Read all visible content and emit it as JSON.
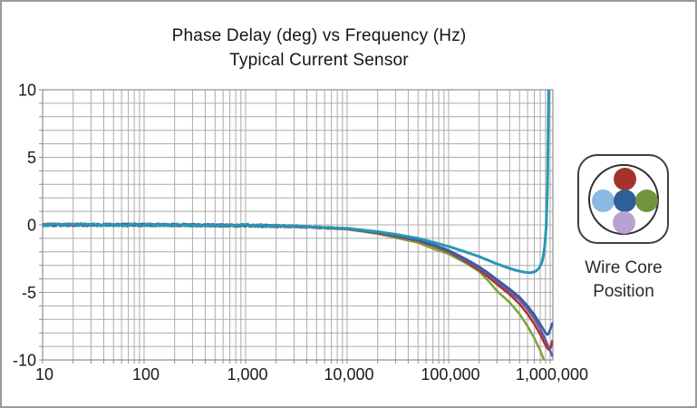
{
  "chart_data": {
    "type": "line",
    "title": "Phase Delay (deg) vs Frequency (Hz)",
    "subtitle": "Typical Current Sensor",
    "xlabel": "Frequency (Hz)",
    "ylabel": "Phase Delay (deg)",
    "x_scale": "log",
    "xlim": [
      10,
      1065000
    ],
    "ylim": [
      -10,
      10
    ],
    "x_ticks": [
      10,
      100,
      1000,
      10000,
      100000,
      1000000
    ],
    "x_tick_labels": [
      "10",
      "100",
      "1,000",
      "10,000",
      "100,000",
      "1,000,000"
    ],
    "y_ticks": [
      10,
      5,
      0,
      -5,
      -10
    ],
    "y_tick_labels": [
      "10",
      "5",
      "0",
      "-5",
      "-10"
    ],
    "y_minor_step": 1,
    "grid": true,
    "grid_color": "#ababab",
    "axis_color": "#8f8f8f",
    "legend": {
      "line1": "Wire Core",
      "line2": "Position",
      "dots": [
        {
          "position": "top",
          "color": "#a5322b"
        },
        {
          "position": "left",
          "color": "#8cb9e2"
        },
        {
          "position": "center",
          "color": "#2e5f9b"
        },
        {
          "position": "right",
          "color": "#71943e"
        },
        {
          "position": "bottom",
          "color": "#b6a3d4"
        }
      ]
    },
    "series": [
      {
        "name": "green",
        "color": "#7da73c",
        "width": 2.6,
        "points": [
          [
            10,
            0
          ],
          [
            50,
            0
          ],
          [
            200,
            -0.02
          ],
          [
            1000,
            -0.06
          ],
          [
            3000,
            -0.13
          ],
          [
            10000,
            -0.33
          ],
          [
            20000,
            -0.66
          ],
          [
            30000,
            -0.95
          ],
          [
            50000,
            -1.32
          ],
          [
            70000,
            -1.75
          ],
          [
            100000,
            -2.15
          ],
          [
            150000,
            -2.85
          ],
          [
            200000,
            -3.45
          ],
          [
            250000,
            -4.2
          ],
          [
            300000,
            -4.9
          ],
          [
            400000,
            -5.75
          ],
          [
            500000,
            -6.6
          ],
          [
            600000,
            -7.5
          ],
          [
            700000,
            -8.4
          ],
          [
            800000,
            -9.3
          ],
          [
            860000,
            -9.9
          ],
          [
            900000,
            -10.4
          ],
          [
            930000,
            -10.9
          ]
        ]
      },
      {
        "name": "red",
        "color": "#a8352f",
        "width": 2.6,
        "points": [
          [
            10,
            0
          ],
          [
            50,
            0
          ],
          [
            200,
            -0.01
          ],
          [
            1000,
            -0.05
          ],
          [
            3000,
            -0.12
          ],
          [
            10000,
            -0.3
          ],
          [
            20000,
            -0.6
          ],
          [
            30000,
            -0.85
          ],
          [
            50000,
            -1.18
          ],
          [
            70000,
            -1.55
          ],
          [
            100000,
            -2.0
          ],
          [
            150000,
            -2.75
          ],
          [
            200000,
            -3.35
          ],
          [
            250000,
            -3.9
          ],
          [
            300000,
            -4.4
          ],
          [
            400000,
            -5.15
          ],
          [
            500000,
            -5.85
          ],
          [
            600000,
            -6.6
          ],
          [
            700000,
            -7.35
          ],
          [
            800000,
            -8.1
          ],
          [
            880000,
            -8.75
          ],
          [
            940000,
            -9.15
          ],
          [
            980000,
            -9.3
          ],
          [
            1015000,
            -9.1
          ],
          [
            1050000,
            -8.6
          ]
        ]
      },
      {
        "name": "purple",
        "color": "#6f58a0",
        "width": 2.6,
        "points": [
          [
            10,
            0
          ],
          [
            50,
            0
          ],
          [
            200,
            -0.01
          ],
          [
            1000,
            -0.05
          ],
          [
            3000,
            -0.11
          ],
          [
            10000,
            -0.29
          ],
          [
            20000,
            -0.57
          ],
          [
            30000,
            -0.81
          ],
          [
            50000,
            -1.13
          ],
          [
            70000,
            -1.5
          ],
          [
            100000,
            -1.95
          ],
          [
            150000,
            -2.65
          ],
          [
            200000,
            -3.2
          ],
          [
            250000,
            -3.72
          ],
          [
            300000,
            -4.2
          ],
          [
            400000,
            -4.95
          ],
          [
            500000,
            -5.55
          ],
          [
            600000,
            -6.25
          ],
          [
            700000,
            -6.95
          ],
          [
            800000,
            -7.7
          ],
          [
            900000,
            -8.5
          ],
          [
            1000000,
            -9.3
          ],
          [
            1050000,
            -9.7
          ]
        ]
      },
      {
        "name": "dark-blue",
        "color": "#3a5ba2",
        "width": 2.6,
        "points": [
          [
            10,
            0
          ],
          [
            50,
            0
          ],
          [
            200,
            -0.01
          ],
          [
            1000,
            -0.05
          ],
          [
            3000,
            -0.11
          ],
          [
            10000,
            -0.28
          ],
          [
            20000,
            -0.55
          ],
          [
            30000,
            -0.78
          ],
          [
            50000,
            -1.1
          ],
          [
            70000,
            -1.45
          ],
          [
            100000,
            -1.88
          ],
          [
            150000,
            -2.55
          ],
          [
            200000,
            -3.1
          ],
          [
            250000,
            -3.6
          ],
          [
            300000,
            -4.05
          ],
          [
            400000,
            -4.75
          ],
          [
            500000,
            -5.35
          ],
          [
            600000,
            -6.0
          ],
          [
            700000,
            -6.65
          ],
          [
            800000,
            -7.35
          ],
          [
            870000,
            -7.8
          ],
          [
            920000,
            -8.1
          ],
          [
            950000,
            -8.15
          ],
          [
            1000000,
            -7.8
          ],
          [
            1050000,
            -7.3
          ]
        ]
      },
      {
        "name": "teal",
        "color": "#2a96b2",
        "width": 3,
        "points": [
          [
            10,
            0
          ],
          [
            50,
            0
          ],
          [
            200,
            -0.01
          ],
          [
            1000,
            -0.04
          ],
          [
            3000,
            -0.09
          ],
          [
            10000,
            -0.26
          ],
          [
            20000,
            -0.5
          ],
          [
            30000,
            -0.7
          ],
          [
            50000,
            -1.0
          ],
          [
            70000,
            -1.28
          ],
          [
            100000,
            -1.6
          ],
          [
            140000,
            -1.95
          ],
          [
            200000,
            -2.35
          ],
          [
            280000,
            -2.8
          ],
          [
            360000,
            -3.1
          ],
          [
            450000,
            -3.35
          ],
          [
            550000,
            -3.5
          ],
          [
            640000,
            -3.55
          ],
          [
            720000,
            -3.45
          ],
          [
            780000,
            -3.2
          ],
          [
            830000,
            -2.8
          ],
          [
            870000,
            -2.1
          ],
          [
            900000,
            -1.0
          ],
          [
            920000,
            0.3
          ],
          [
            938000,
            2.2
          ],
          [
            952000,
            4.8
          ],
          [
            962000,
            7.5
          ],
          [
            970000,
            10.6
          ]
        ]
      }
    ]
  }
}
